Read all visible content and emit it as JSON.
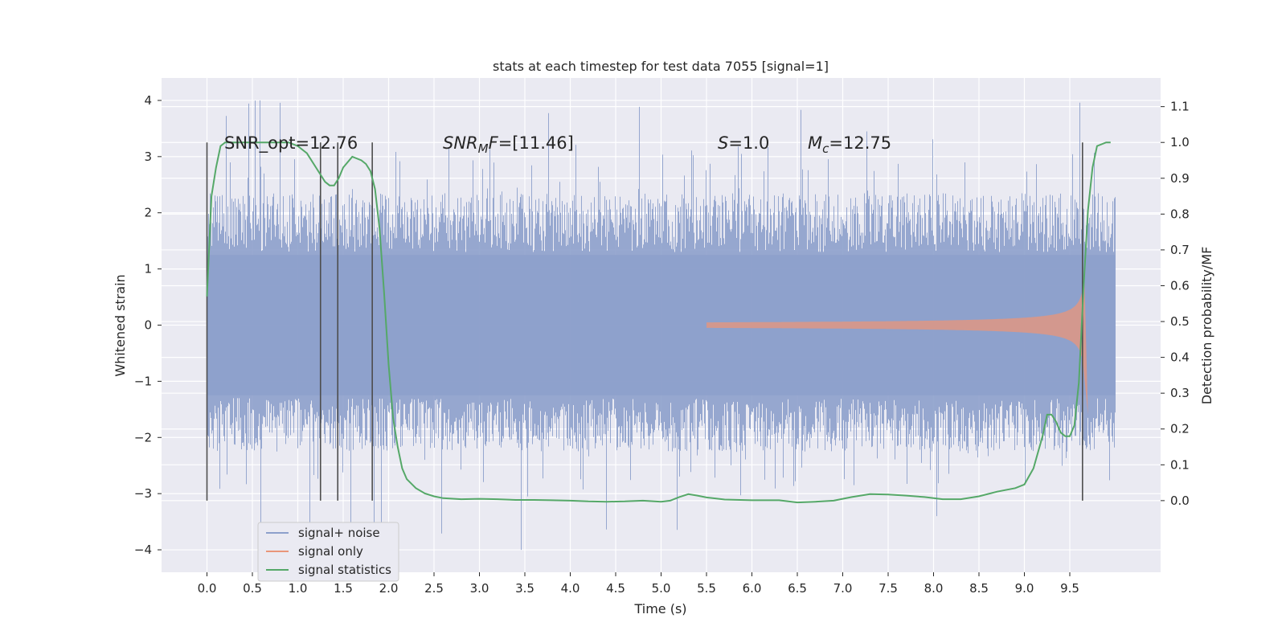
{
  "chart_data": {
    "type": "line",
    "title": "stats at each timestep for test data 7055 [signal=1]",
    "xlabel": "Time (s)",
    "ylabel": "Whitened strain",
    "ylabel_right": "Detection probability/MF",
    "xlim": [
      -0.5,
      10.5
    ],
    "ylim": [
      -4.4,
      4.4
    ],
    "ylim_right": [
      -0.2,
      1.18
    ],
    "x_ticks": [
      0.0,
      0.5,
      1.0,
      1.5,
      2.0,
      2.5,
      3.0,
      3.5,
      4.0,
      4.5,
      5.0,
      5.5,
      6.0,
      6.5,
      7.0,
      7.5,
      8.0,
      8.5,
      9.0,
      9.5
    ],
    "x_tick_labels": [
      "0.0",
      "0.5",
      "1.0",
      "1.5",
      "2.0",
      "2.5",
      "3.0",
      "3.5",
      "4.0",
      "4.5",
      "5.0",
      "5.5",
      "6.0",
      "6.5",
      "7.0",
      "7.5",
      "8.0",
      "8.5",
      "9.0",
      "9.5"
    ],
    "y_ticks": [
      -4,
      -3,
      -2,
      -1,
      0,
      1,
      2,
      3,
      4
    ],
    "y_tick_labels": [
      "−4",
      "−3",
      "−2",
      "−1",
      "0",
      "1",
      "2",
      "3",
      "4"
    ],
    "y_right_ticks": [
      0.0,
      0.1,
      0.2,
      0.3,
      0.4,
      0.5,
      0.6,
      0.7,
      0.8,
      0.9,
      1.0,
      1.1
    ],
    "y_right_tick_labels": [
      "0.0",
      "0.1",
      "0.2",
      "0.3",
      "0.4",
      "0.5",
      "0.6",
      "0.7",
      "0.8",
      "0.9",
      "1.0",
      "1.1"
    ],
    "grid": true,
    "legend_position": "lower-left",
    "background": "#eaeaf2",
    "annotations": {
      "snr_opt": "SNR_opt=12.76",
      "snr_mf_main": "SNR",
      "snr_mf_sub": "M",
      "snr_mf_tail": "F",
      "snr_mf_value": "=[11.46]",
      "s_symbol": "S",
      "s_value": "=1.0",
      "mc_symbol": "M",
      "mc_sub": "c",
      "mc_value": "=12.75"
    },
    "markers_x": [
      0.0,
      1.25,
      1.44,
      1.82,
      9.64
    ],
    "series": [
      {
        "name": "signal+ noise",
        "color": "#8da0cb",
        "axis": "left",
        "x_range": [
          0.0,
          10.0
        ],
        "envelope_core": 1.25,
        "peak_positive": 4.05,
        "peak_negative": -4.05
      },
      {
        "name": "signal only",
        "color": "#e9967a",
        "axis": "left",
        "x_range": [
          5.5,
          9.7
        ],
        "peak_amplitude": 1.1
      },
      {
        "name": "signal statistics",
        "color": "#55a868",
        "axis": "right",
        "x": [
          0.0,
          0.05,
          0.1,
          0.15,
          0.2,
          0.3,
          0.5,
          0.7,
          0.9,
          1.0,
          1.1,
          1.2,
          1.3,
          1.35,
          1.4,
          1.45,
          1.5,
          1.6,
          1.7,
          1.75,
          1.8,
          1.85,
          1.9,
          1.95,
          2.0,
          2.05,
          2.1,
          2.15,
          2.2,
          2.3,
          2.4,
          2.5,
          2.6,
          2.8,
          3.0,
          3.2,
          3.4,
          3.6,
          3.8,
          4.0,
          4.2,
          4.4,
          4.6,
          4.8,
          5.0,
          5.1,
          5.2,
          5.3,
          5.4,
          5.5,
          5.7,
          6.0,
          6.3,
          6.5,
          6.7,
          6.9,
          7.1,
          7.3,
          7.5,
          7.7,
          7.9,
          8.1,
          8.3,
          8.5,
          8.7,
          8.9,
          9.0,
          9.1,
          9.2,
          9.25,
          9.3,
          9.35,
          9.4,
          9.45,
          9.5,
          9.55,
          9.6,
          9.65,
          9.7,
          9.75,
          9.8,
          9.9,
          9.95
        ],
        "y": [
          0.57,
          0.85,
          0.93,
          0.99,
          1.0,
          1.0,
          1.0,
          1.0,
          1.0,
          0.99,
          0.97,
          0.93,
          0.89,
          0.88,
          0.88,
          0.9,
          0.93,
          0.96,
          0.95,
          0.94,
          0.92,
          0.87,
          0.76,
          0.58,
          0.38,
          0.23,
          0.15,
          0.09,
          0.06,
          0.035,
          0.02,
          0.012,
          0.007,
          0.004,
          0.005,
          0.004,
          0.002,
          0.002,
          0.001,
          0.0,
          -0.002,
          -0.003,
          -0.002,
          0.0,
          -0.003,
          0.0,
          0.01,
          0.018,
          0.014,
          0.009,
          0.003,
          0.001,
          0.001,
          -0.005,
          -0.003,
          0.0,
          0.01,
          0.018,
          0.017,
          0.014,
          0.01,
          0.004,
          0.004,
          0.012,
          0.025,
          0.035,
          0.045,
          0.09,
          0.18,
          0.24,
          0.24,
          0.22,
          0.19,
          0.18,
          0.18,
          0.21,
          0.33,
          0.59,
          0.81,
          0.93,
          0.99,
          1.0,
          1.0
        ]
      }
    ]
  }
}
